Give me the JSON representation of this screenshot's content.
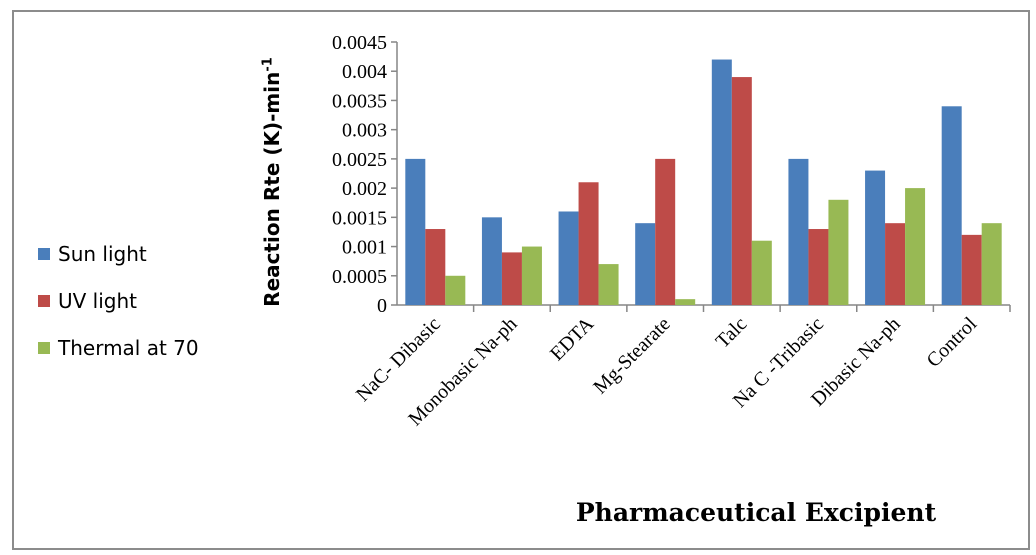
{
  "chart_data": {
    "type": "bar",
    "categories": [
      "NaC- Dibasic",
      "Monobasic Na-ph",
      "EDTA",
      "Mg-Stearate",
      "Talc",
      "Na C -Tribasic",
      "Dibasic Na-ph",
      "Control"
    ],
    "series": [
      {
        "name": "Sun light",
        "color": "#4a7ebb",
        "values": [
          0.0025,
          0.0015,
          0.0016,
          0.0014,
          0.0042,
          0.0025,
          0.0023,
          0.0034
        ]
      },
      {
        "name": "UV light",
        "color": "#be4b48",
        "values": [
          0.0013,
          0.0009,
          0.0021,
          0.0025,
          0.0039,
          0.0013,
          0.0014,
          0.0012
        ]
      },
      {
        "name": "Thermal at 70",
        "color": "#98b954",
        "values": [
          0.0005,
          0.001,
          0.0007,
          0.0001,
          0.0011,
          0.0018,
          0.002,
          0.0014
        ]
      }
    ],
    "ylabel_main": "Reaction Rte (K)-min",
    "ylabel_sup": "-1",
    "xlabel": "Pharmaceutical Excipient",
    "ylim": [
      0,
      0.0045
    ],
    "yticks": [
      "0",
      "0.0005",
      "0.001",
      "0.0015",
      "0.002",
      "0.0025",
      "0.003",
      "0.0035",
      "0.004",
      "0.0045"
    ],
    "grid": false,
    "legend_position": "left"
  }
}
